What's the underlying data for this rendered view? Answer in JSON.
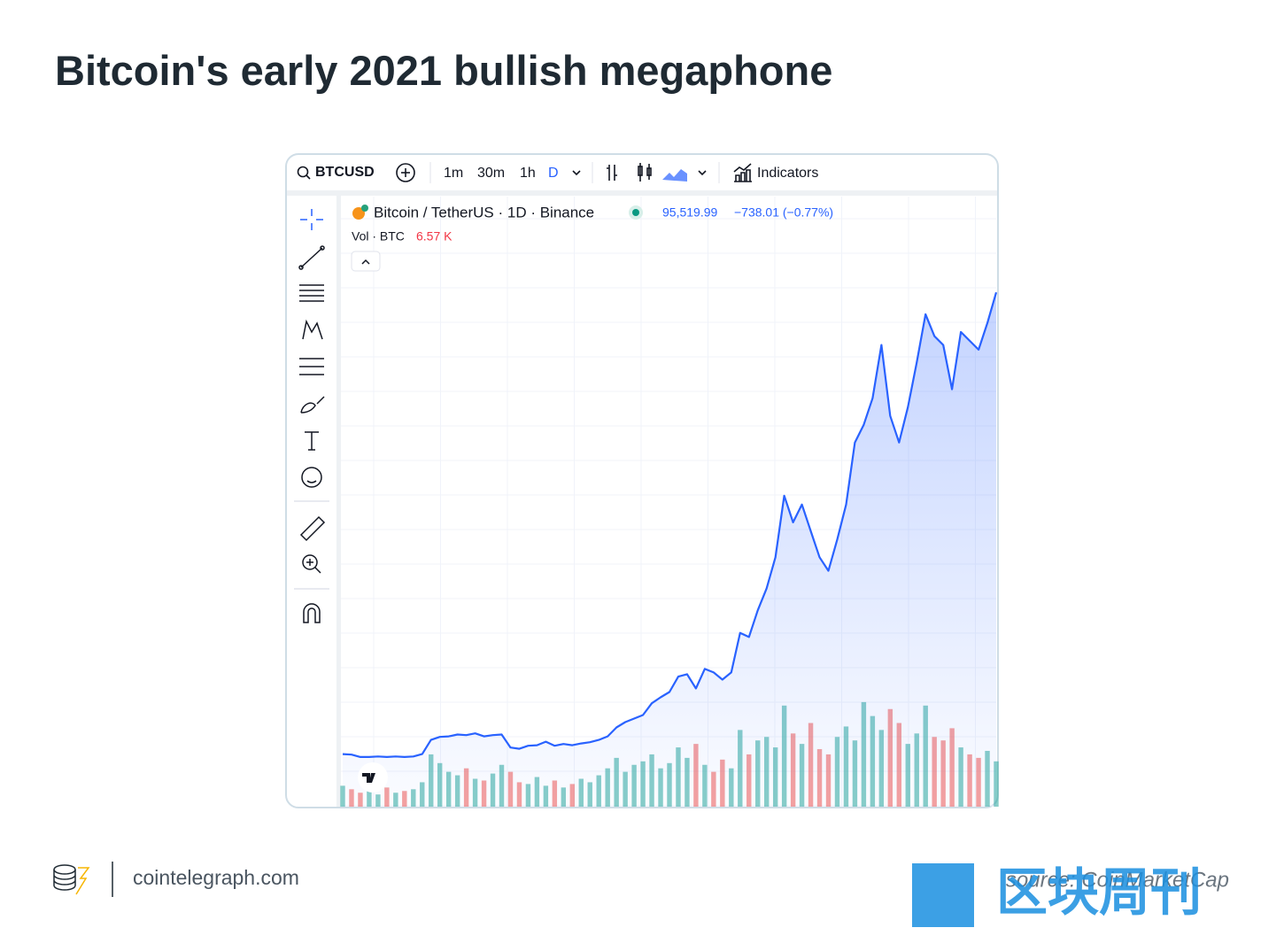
{
  "header": {
    "title": "Bitcoin's early 2021 bullish megaphone"
  },
  "toolbar": {
    "symbol": "BTCUSD",
    "intervals": [
      "1m",
      "30m",
      "1h",
      "D"
    ],
    "indicators": "Indicators"
  },
  "legend": {
    "name": "Bitcoin / TetherUS · 1D · Binance",
    "price": "95,519.99",
    "change": "−738.01 (−0.77%)",
    "volume_label": "Vol · BTC",
    "volume_value": "6.57 K"
  },
  "chart_data": {
    "type": "area",
    "color": "#2962ff",
    "values": [
      17400,
      17300,
      16900,
      16900,
      17000,
      16900,
      17000,
      16900,
      17000,
      17400,
      19800,
      20300,
      20400,
      20700,
      20600,
      20900,
      20400,
      20600,
      20700,
      18500,
      18300,
      18800,
      18900,
      19500,
      18800,
      19100,
      18900,
      19200,
      19400,
      19800,
      20400,
      21900,
      22800,
      23400,
      24000,
      26000,
      27000,
      27900,
      30500,
      30900,
      28500,
      31800,
      31200,
      30000,
      31200,
      37900,
      37200,
      41700,
      45400,
      50700,
      61100,
      56600,
      59600,
      55100,
      50700,
      48400,
      53700,
      59600,
      70100,
      73100,
      77600,
      86600,
      74600,
      70100,
      76100,
      83600,
      91800,
      88100,
      86600,
      79100,
      88800,
      87300,
      85800,
      90300,
      95500
    ],
    "ylim": [
      8500,
      111700
    ],
    "volume": {
      "values": [
        12,
        10,
        8,
        9,
        7,
        11,
        8,
        9,
        10,
        14,
        30,
        25,
        20,
        18,
        22,
        16,
        15,
        19,
        24,
        20,
        14,
        13,
        17,
        12,
        15,
        11,
        13,
        16,
        14,
        18,
        22,
        28,
        20,
        24,
        26,
        30,
        22,
        25,
        34,
        28,
        36,
        24,
        20,
        27,
        22,
        44,
        30,
        38,
        40,
        34,
        58,
        42,
        36,
        48,
        33,
        30,
        40,
        46,
        38,
        60,
        52,
        44,
        56,
        48,
        36,
        42,
        58,
        40,
        38,
        45,
        34,
        30,
        28,
        32,
        26
      ],
      "ylim": [
        0,
        350
      ],
      "up_color": "#26a69a",
      "down_color": "#ef5350"
    },
    "grid": true
  },
  "footer": {
    "site": "cointelegraph.com",
    "source": "source: CoinMarketCap",
    "watermark": "区块周刊"
  }
}
